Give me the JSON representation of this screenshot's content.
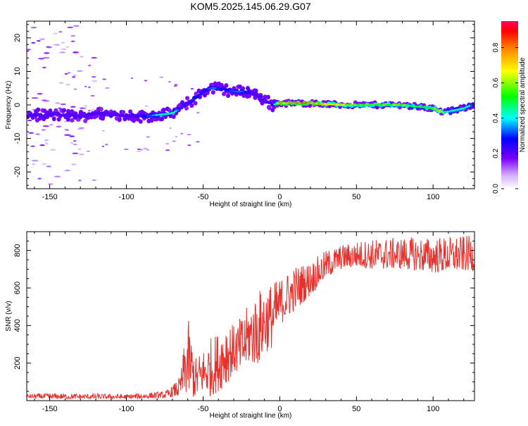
{
  "chart_data": [
    {
      "type": "heatmap",
      "title": "KOM5.2025.145.06.29.G07",
      "xlabel": "Height of straight line (km)",
      "ylabel": "Frequency (Hz)",
      "xlim": [
        -165,
        127
      ],
      "ylim": [
        -25,
        25
      ],
      "xticks": [
        -150,
        -100,
        -50,
        0,
        50,
        100
      ],
      "yticks": [
        -20,
        -10,
        0,
        10,
        20
      ],
      "grid": false,
      "colorbar": {
        "label": "Normalized spectral amplitude",
        "range": [
          0.0,
          0.95
        ],
        "ticks": [
          0.0,
          0.2,
          0.4,
          0.6,
          0.8
        ]
      },
      "ridge": {
        "x": [
          -160,
          -140,
          -130,
          -120,
          -100,
          -90,
          -80,
          -70,
          -65,
          -60,
          -55,
          -50,
          -45,
          -40,
          -35,
          -30,
          -25,
          -20,
          -15,
          -10,
          -5,
          0,
          20,
          40,
          60,
          80,
          90,
          100,
          105,
          110,
          120,
          125
        ],
        "y": [
          -3,
          -3,
          -3.5,
          -2.5,
          -3,
          -3.5,
          -3,
          -2.5,
          -1,
          0.5,
          2,
          4,
          5,
          5,
          4.5,
          4,
          4,
          4,
          3,
          1.5,
          0,
          0.5,
          0.5,
          0,
          0,
          0,
          -0.5,
          -1,
          -2,
          -2,
          -1,
          0
        ],
        "amplitude": [
          0.25,
          0.2,
          0.15,
          0.25,
          0.25,
          0.3,
          0.45,
          0.5,
          0.3,
          0.25,
          0.35,
          0.3,
          0.4,
          0.35,
          0.3,
          0.35,
          0.4,
          0.3,
          0.25,
          0.2,
          0.25,
          0.85,
          0.9,
          0.7,
          0.6,
          0.65,
          0.55,
          0.6,
          0.7,
          0.45,
          0.5,
          0.4
        ]
      }
    },
    {
      "type": "line",
      "xlabel": "Height of straight line (km)",
      "ylabel": "SNR (v/v)",
      "xlim": [
        -165,
        127
      ],
      "ylim": [
        0,
        900
      ],
      "xticks": [
        -150,
        -100,
        -50,
        0,
        50,
        100
      ],
      "yticks": [
        200,
        400,
        600,
        800
      ],
      "grid": false,
      "line_color": "#e8302c",
      "envelope": {
        "x": [
          -165,
          -150,
          -100,
          -75,
          -70,
          -65,
          -60,
          -55,
          -50,
          -45,
          -40,
          -35,
          -30,
          -25,
          -20,
          -15,
          -10,
          -5,
          0,
          10,
          20,
          30,
          40,
          50,
          60,
          80,
          100,
          127
        ],
        "low": [
          15,
          10,
          10,
          15,
          20,
          20,
          30,
          10,
          40,
          20,
          50,
          80,
          150,
          130,
          200,
          180,
          250,
          280,
          400,
          480,
          560,
          650,
          700,
          710,
          700,
          700,
          680,
          690
        ],
        "high": [
          35,
          40,
          35,
          50,
          80,
          130,
          450,
          230,
          280,
          340,
          370,
          460,
          400,
          450,
          520,
          580,
          620,
          630,
          650,
          720,
          740,
          800,
          830,
          850,
          860,
          870,
          870,
          880
        ]
      }
    }
  ]
}
